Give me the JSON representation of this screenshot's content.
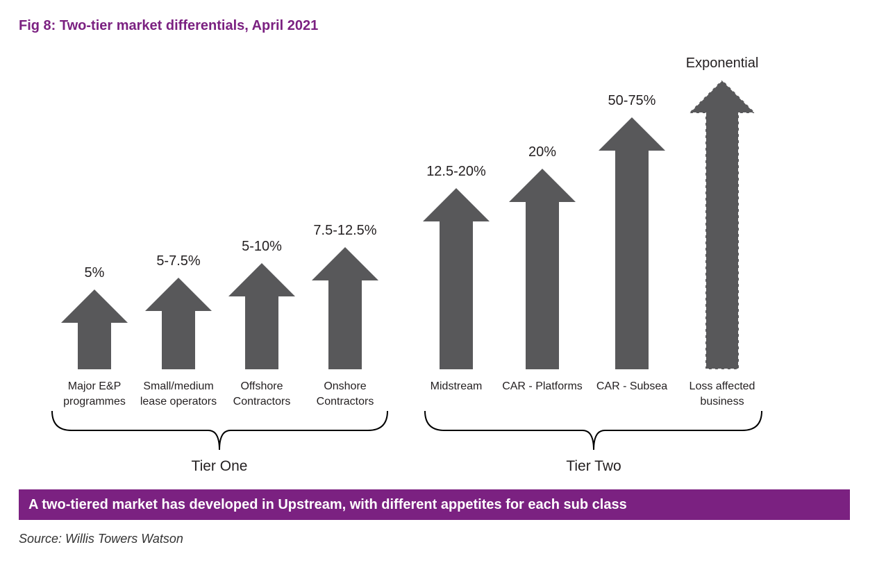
{
  "title": "Fig 8: Two-tier market differentials, April 2021",
  "colors": {
    "accent": "#7b2181",
    "arrow": "#58585a",
    "text": "#231f20"
  },
  "items": [
    {
      "label_lines": [
        "Major E&P",
        "programmes"
      ],
      "value": "5%",
      "dashed": false
    },
    {
      "label_lines": [
        "Small/medium",
        "lease operators"
      ],
      "value": "5-7.5%",
      "dashed": false
    },
    {
      "label_lines": [
        "Offshore",
        "Contractors"
      ],
      "value": "5-10%",
      "dashed": false
    },
    {
      "label_lines": [
        "Onshore",
        "Contractors"
      ],
      "value": "7.5-12.5%",
      "dashed": false
    },
    {
      "label_lines": [
        "Midstream"
      ],
      "value": "12.5-20%",
      "dashed": false
    },
    {
      "label_lines": [
        "CAR - Platforms"
      ],
      "value": "20%",
      "dashed": false
    },
    {
      "label_lines": [
        "CAR - Subsea"
      ],
      "value": "50-75%",
      "dashed": false
    },
    {
      "label_lines": [
        "Loss affected",
        "business"
      ],
      "value": "Exponential",
      "dashed": true
    }
  ],
  "tiers": [
    {
      "name": "Tier One"
    },
    {
      "name": "Tier Two"
    }
  ],
  "banner": "A two-tiered market has developed in Upstream, with different appetites for each sub class",
  "source": "Source: Willis Towers Watson"
}
